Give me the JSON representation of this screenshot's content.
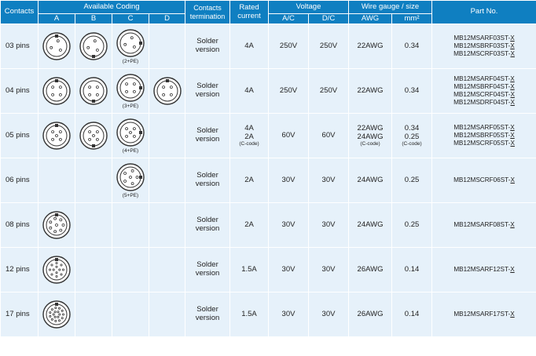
{
  "headers": {
    "contacts": "Contacts",
    "available_coding": "Available Coding",
    "coding_a": "A",
    "coding_b": "B",
    "coding_c": "C",
    "coding_d": "D",
    "contacts_termination": "Contacts termination",
    "rated_current": "Rated current",
    "voltage": "Voltage",
    "ac": "A/C",
    "dc": "D/C",
    "wire_gauge": "Wire gauge / size",
    "awg": "AWG",
    "mm2": "mm²",
    "part_no": "Part No."
  },
  "rows": [
    {
      "contacts": "03 pins",
      "coding": {
        "A": true,
        "B": true,
        "C": true,
        "D": false
      },
      "c_note": "(2+PE)",
      "termination": "Solder version",
      "current": "4A",
      "current2": "",
      "current_note": "",
      "ac": "250V",
      "dc": "250V",
      "awg": "22AWG",
      "awg2": "",
      "awg_note": "",
      "mm2": "0.34",
      "mm2_2": "",
      "mm2_note": "",
      "parts": [
        "MB12MSARF03ST-X",
        "MB12MSBRF03ST-X",
        "MB12MSCRF03ST-X"
      ]
    },
    {
      "contacts": "04 pins",
      "coding": {
        "A": true,
        "B": true,
        "C": true,
        "D": true
      },
      "c_note": "(3+PE)",
      "termination": "Solder version",
      "current": "4A",
      "current2": "",
      "current_note": "",
      "ac": "250V",
      "dc": "250V",
      "awg": "22AWG",
      "awg2": "",
      "awg_note": "",
      "mm2": "0.34",
      "mm2_2": "",
      "mm2_note": "",
      "parts": [
        "MB12MSARF04ST-X",
        "MB12MSBRF04ST-X",
        "MB12MSCRF04ST-X",
        "MB12MSDRF04ST-X"
      ]
    },
    {
      "contacts": "05 pins",
      "coding": {
        "A": true,
        "B": true,
        "C": true,
        "D": false
      },
      "c_note": "(4+PE)",
      "termination": "Solder version",
      "current": "4A",
      "current2": "2A",
      "current_note": "(C-code)",
      "ac": "60V",
      "dc": "60V",
      "awg": "22AWG",
      "awg2": "24AWG",
      "awg_note": "(C-code)",
      "mm2": "0.34",
      "mm2_2": "0.25",
      "mm2_note": "(C-code)",
      "parts": [
        "MB12MSARF05ST-X",
        "MB12MSBRF05ST-X",
        "MB12MSCRF05ST-X"
      ]
    },
    {
      "contacts": "06 pins",
      "coding": {
        "A": false,
        "B": false,
        "C": true,
        "D": false
      },
      "c_note": "(5+PE)",
      "termination": "Solder version",
      "current": "2A",
      "current2": "",
      "current_note": "",
      "ac": "30V",
      "dc": "30V",
      "awg": "24AWG",
      "awg2": "",
      "awg_note": "",
      "mm2": "0.25",
      "mm2_2": "",
      "mm2_note": "",
      "parts": [
        "MB12MSCRF06ST-X"
      ]
    },
    {
      "contacts": "08 pins",
      "coding": {
        "A": true,
        "B": false,
        "C": false,
        "D": false
      },
      "c_note": "",
      "termination": "Solder version",
      "current": "2A",
      "current2": "",
      "current_note": "",
      "ac": "30V",
      "dc": "30V",
      "awg": "24AWG",
      "awg2": "",
      "awg_note": "",
      "mm2": "0.25",
      "mm2_2": "",
      "mm2_note": "",
      "parts": [
        "MB12MSARF08ST-X"
      ]
    },
    {
      "contacts": "12 pins",
      "coding": {
        "A": true,
        "B": false,
        "C": false,
        "D": false
      },
      "c_note": "",
      "termination": "Solder version",
      "current": "1.5A",
      "current2": "",
      "current_note": "",
      "ac": "30V",
      "dc": "30V",
      "awg": "26AWG",
      "awg2": "",
      "awg_note": "",
      "mm2": "0.14",
      "mm2_2": "",
      "mm2_note": "",
      "parts": [
        "MB12MSARF12ST-X"
      ]
    },
    {
      "contacts": "17 pins",
      "coding": {
        "A": true,
        "B": false,
        "C": false,
        "D": false
      },
      "c_note": "",
      "termination": "Solder version",
      "current": "1.5A",
      "current2": "",
      "current_note": "",
      "ac": "30V",
      "dc": "30V",
      "awg": "26AWG",
      "awg2": "",
      "awg_note": "",
      "mm2": "0.14",
      "mm2_2": "",
      "mm2_note": "",
      "parts": [
        "MB12MSARF17ST-X"
      ]
    }
  ]
}
